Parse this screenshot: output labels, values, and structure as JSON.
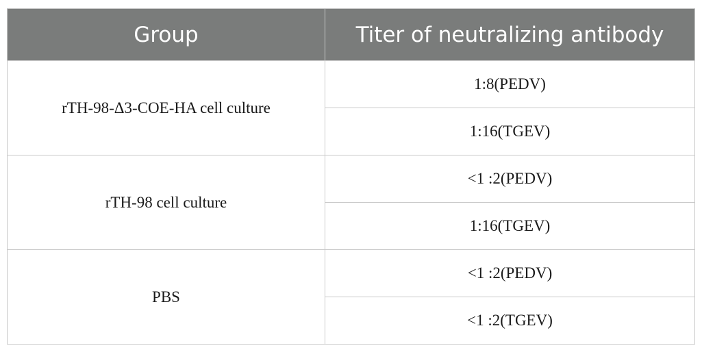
{
  "table": {
    "headers": [
      "Group",
      "Titer of neutralizing antibody"
    ],
    "rows": [
      {
        "group": "rTH-98-Δ3-COE-HA cell culture",
        "titers": [
          "1:8(PEDV)",
          "1:16(TGEV)"
        ]
      },
      {
        "group": "rTH-98 cell culture",
        "titers": [
          "<1 :2(PEDV)",
          "1:16(TGEV)"
        ]
      },
      {
        "group": "PBS",
        "titers": [
          "<1 :2(PEDV)",
          "<1 :2(TGEV)"
        ]
      }
    ]
  }
}
